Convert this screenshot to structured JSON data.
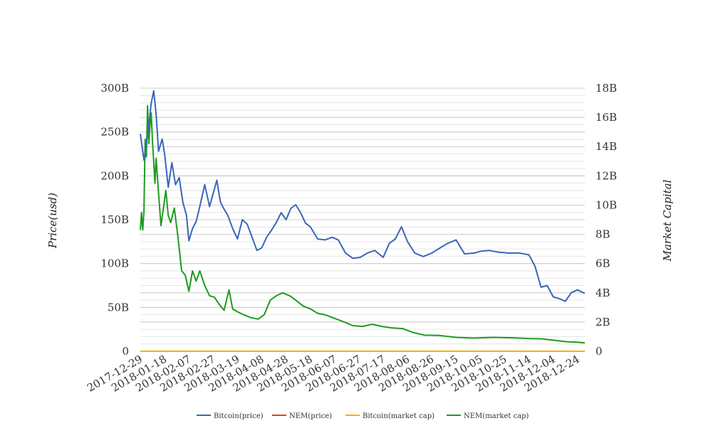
{
  "chart_data": {
    "type": "line",
    "title": "",
    "ylabel": "Price(usd)",
    "y2label": "Market Capital",
    "ylim": [
      0,
      300000000000
    ],
    "y2lim": [
      0,
      18000000000
    ],
    "y_ticks": [
      "0",
      "50B",
      "100B",
      "150B",
      "200B",
      "250B",
      "300B"
    ],
    "y2_ticks": [
      "0",
      "2B",
      "4B",
      "6B",
      "8B",
      "10B",
      "12B",
      "14B",
      "16B",
      "18B"
    ],
    "x_ticks": [
      "2017-12-29",
      "2018-01-18",
      "2018-02-07",
      "2018-02-27",
      "2018-03-19",
      "2018-04-08",
      "2018-04-28",
      "2018-05-18",
      "2018-06-07",
      "2018-06-27",
      "2018-07-17",
      "2018-08-06",
      "2018-08-26",
      "2018-09-15",
      "2018-10-05",
      "2018-10-25",
      "2018-11-14",
      "2018-12-04",
      "2018-12-24"
    ],
    "grid": true,
    "legend_position": "bottom",
    "colors": {
      "bitcoin_price": "#3a66b9",
      "nem_price": "#d7471b",
      "bitcoin_cap": "#f0b400",
      "nem_cap": "#1f9a1f",
      "grid": "#cccccc",
      "minor_grid": "#e6e6e6"
    },
    "series": [
      {
        "name": "Bitcoin(price)",
        "axis": "left",
        "x": [
          "2017-12-29",
          "2018-01-01",
          "2018-01-03",
          "2018-01-05",
          "2018-01-07",
          "2018-01-09",
          "2018-01-11",
          "2018-01-13",
          "2018-01-16",
          "2018-01-18",
          "2018-01-21",
          "2018-01-24",
          "2018-01-27",
          "2018-01-30",
          "2018-02-02",
          "2018-02-05",
          "2018-02-07",
          "2018-02-10",
          "2018-02-13",
          "2018-02-16",
          "2018-02-20",
          "2018-02-24",
          "2018-02-27",
          "2018-03-02",
          "2018-03-05",
          "2018-03-08",
          "2018-03-11",
          "2018-03-15",
          "2018-03-19",
          "2018-03-23",
          "2018-03-27",
          "2018-03-31",
          "2018-04-04",
          "2018-04-08",
          "2018-04-12",
          "2018-04-16",
          "2018-04-20",
          "2018-04-24",
          "2018-04-28",
          "2018-05-02",
          "2018-05-06",
          "2018-05-10",
          "2018-05-14",
          "2018-05-18",
          "2018-05-24",
          "2018-05-30",
          "2018-06-05",
          "2018-06-10",
          "2018-06-16",
          "2018-06-22",
          "2018-06-28",
          "2018-07-04",
          "2018-07-10",
          "2018-07-17",
          "2018-07-22",
          "2018-07-27",
          "2018-08-01",
          "2018-08-06",
          "2018-08-12",
          "2018-08-19",
          "2018-08-26",
          "2018-09-02",
          "2018-09-08",
          "2018-09-15",
          "2018-09-22",
          "2018-09-30",
          "2018-10-05",
          "2018-10-12",
          "2018-10-20",
          "2018-10-28",
          "2018-11-06",
          "2018-11-14",
          "2018-11-19",
          "2018-11-24",
          "2018-11-29",
          "2018-12-04",
          "2018-12-09",
          "2018-12-14",
          "2018-12-19",
          "2018-12-24",
          "2018-12-30"
        ],
        "values": [
          248000000000,
          218000000000,
          238000000000,
          258000000000,
          283000000000,
          297000000000,
          270000000000,
          228000000000,
          242000000000,
          225000000000,
          187000000000,
          215000000000,
          190000000000,
          198000000000,
          170000000000,
          155000000000,
          126000000000,
          140000000000,
          148000000000,
          165000000000,
          190000000000,
          165000000000,
          180000000000,
          195000000000,
          170000000000,
          162000000000,
          155000000000,
          140000000000,
          128000000000,
          150000000000,
          145000000000,
          130000000000,
          115000000000,
          118000000000,
          130000000000,
          138000000000,
          147000000000,
          158000000000,
          150000000000,
          163000000000,
          167000000000,
          158000000000,
          146000000000,
          142000000000,
          128000000000,
          127000000000,
          130000000000,
          127000000000,
          112000000000,
          106000000000,
          107000000000,
          112000000000,
          115000000000,
          107000000000,
          123000000000,
          128000000000,
          142000000000,
          125000000000,
          112000000000,
          108000000000,
          112000000000,
          118000000000,
          123000000000,
          127000000000,
          111000000000,
          112000000000,
          114000000000,
          115000000000,
          113000000000,
          112000000000,
          112000000000,
          110000000000,
          97000000000,
          73000000000,
          75000000000,
          62000000000,
          60000000000,
          57000000000,
          67000000000,
          70000000000,
          66000000000
        ]
      },
      {
        "name": "NEM(price)",
        "axis": "left",
        "x": [
          "2017-12-29",
          "2018-12-30"
        ],
        "values": [
          1,
          1
        ]
      },
      {
        "name": "Bitcoin(market cap)",
        "axis": "right",
        "x": [
          "2017-12-29",
          "2018-12-30"
        ],
        "values": [
          1,
          1
        ]
      },
      {
        "name": "NEM(market cap)",
        "axis": "right",
        "x": [
          "2017-12-29",
          "2017-12-30",
          "2017-12-31",
          "2018-01-01",
          "2018-01-02",
          "2018-01-03",
          "2018-01-04",
          "2018-01-05",
          "2018-01-06",
          "2018-01-07",
          "2018-01-08",
          "2018-01-09",
          "2018-01-10",
          "2018-01-11",
          "2018-01-13",
          "2018-01-15",
          "2018-01-17",
          "2018-01-19",
          "2018-01-21",
          "2018-01-23",
          "2018-01-26",
          "2018-01-29",
          "2018-02-01",
          "2018-02-04",
          "2018-02-07",
          "2018-02-10",
          "2018-02-13",
          "2018-02-16",
          "2018-02-20",
          "2018-02-24",
          "2018-02-28",
          "2018-03-04",
          "2018-03-08",
          "2018-03-12",
          "2018-03-15",
          "2018-03-19",
          "2018-03-24",
          "2018-03-30",
          "2018-04-05",
          "2018-04-10",
          "2018-04-15",
          "2018-04-20",
          "2018-04-25",
          "2018-05-01",
          "2018-05-06",
          "2018-05-12",
          "2018-05-18",
          "2018-05-24",
          "2018-05-30",
          "2018-06-07",
          "2018-06-15",
          "2018-06-22",
          "2018-06-30",
          "2018-07-08",
          "2018-07-16",
          "2018-07-24",
          "2018-08-02",
          "2018-08-10",
          "2018-08-20",
          "2018-09-01",
          "2018-09-15",
          "2018-09-30",
          "2018-10-15",
          "2018-11-01",
          "2018-11-14",
          "2018-11-25",
          "2018-12-05",
          "2018-12-15",
          "2018-12-24",
          "2018-12-30"
        ],
        "values": [
          8300000000,
          9500000000,
          8300000000,
          9600000000,
          14500000000,
          13300000000,
          16800000000,
          14200000000,
          15500000000,
          16300000000,
          14400000000,
          13000000000,
          11500000000,
          13200000000,
          10800000000,
          8600000000,
          9800000000,
          11000000000,
          9300000000,
          8800000000,
          9800000000,
          7800000000,
          5500000000,
          5200000000,
          4100000000,
          5500000000,
          4800000000,
          5500000000,
          4500000000,
          3800000000,
          3700000000,
          3200000000,
          2800000000,
          4200000000,
          2900000000,
          2700000000,
          2500000000,
          2300000000,
          2200000000,
          2500000000,
          3500000000,
          3800000000,
          4000000000,
          3800000000,
          3500000000,
          3100000000,
          2900000000,
          2600000000,
          2500000000,
          2250000000,
          2000000000,
          1750000000,
          1700000000,
          1850000000,
          1700000000,
          1600000000,
          1550000000,
          1300000000,
          1100000000,
          1080000000,
          950000000,
          900000000,
          950000000,
          920000000,
          870000000,
          850000000,
          750000000,
          650000000,
          620000000,
          580000000
        ]
      }
    ]
  }
}
